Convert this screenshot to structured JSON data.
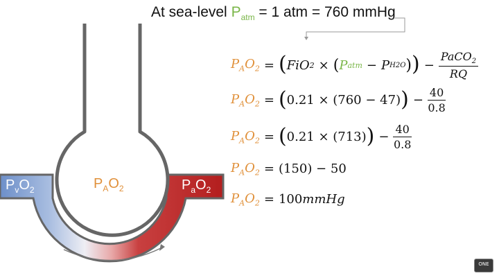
{
  "header": {
    "prefix": "At sea-level ",
    "p": "P",
    "sub": "atm",
    "suffix": " = 1 atm = 760 mmHg"
  },
  "diagram": {
    "alveolus_label_main": "P",
    "alveolus_label_sub": "A",
    "alveolus_label_tail": "O",
    "alveolus_label_sub2": "2",
    "venous_label_main": "P",
    "venous_label_sub": "v",
    "venous_label_tail": "O",
    "venous_label_sub2": "2",
    "arterial_label_main": "P",
    "arterial_label_sub": "a",
    "arterial_label_tail": "O",
    "arterial_label_sub2": "2",
    "colors": {
      "venous": "#6d8fc9",
      "arterial": "#b31e1e",
      "alveolus_text": "#e0903a",
      "wall": "#666666"
    }
  },
  "equations": {
    "lhs_p": "P",
    "lhs_a": "A",
    "lhs_o": "O",
    "lhs_2": "2",
    "eq1": {
      "fio2": "FiO",
      "fio2_sub": "2",
      "times": "×",
      "patm": "P",
      "patm_sub": "atm",
      "minus": "−",
      "ph2o": "P",
      "ph2o_sub": "H2O",
      "frac_num": "PaCO",
      "frac_num_sub": "2",
      "frac_den": "RQ"
    },
    "eq2": {
      "inner": "0.21 × (760 − 47)",
      "frac_num": "40",
      "frac_den": "0.8"
    },
    "eq3": {
      "inner": "0.21 × (713)",
      "frac_num": "40",
      "frac_den": "0.8"
    },
    "eq4": {
      "rhs": "(150) − 50"
    },
    "eq5": {
      "value": "100 ",
      "unit": "mmHg"
    }
  },
  "logo_text": "ONE"
}
